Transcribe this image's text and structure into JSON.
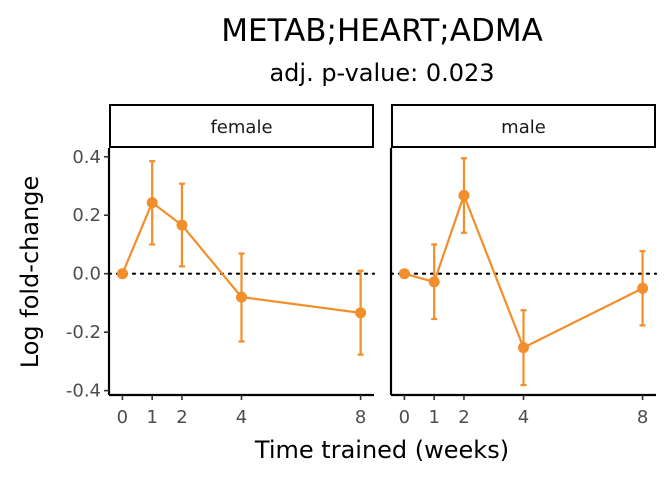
{
  "chart_data": {
    "type": "line",
    "title": "METAB;HEART;ADMA",
    "subtitle": "adj. p-value: 0.023",
    "xlabel": "Time trained (weeks)",
    "ylabel": "Log fold-change",
    "x_ticks": [
      0,
      1,
      2,
      4,
      8
    ],
    "y_ticks": [
      0.4,
      0.2,
      0.0,
      -0.2,
      -0.4
    ],
    "y_tick_labels": [
      "0.4",
      "0.2",
      "0.0",
      "-0.2",
      "-0.4"
    ],
    "ylim": [
      -0.415,
      0.43
    ],
    "xlim": [
      -0.45,
      8.45
    ],
    "reference_line": 0,
    "grid": false,
    "color": "#F28E2B",
    "panels": [
      {
        "label": "female",
        "points": [
          {
            "x": 0,
            "y": 0.0,
            "lo": null,
            "hi": null
          },
          {
            "x": 1,
            "y": 0.243,
            "lo": 0.1,
            "hi": 0.385
          },
          {
            "x": 2,
            "y": 0.166,
            "lo": 0.025,
            "hi": 0.308
          },
          {
            "x": 4,
            "y": -0.08,
            "lo": -0.232,
            "hi": 0.069
          },
          {
            "x": 8,
            "y": -0.134,
            "lo": -0.277,
            "hi": 0.01
          }
        ]
      },
      {
        "label": "male",
        "points": [
          {
            "x": 0,
            "y": 0.0,
            "lo": null,
            "hi": null
          },
          {
            "x": 1,
            "y": -0.028,
            "lo": -0.155,
            "hi": 0.1
          },
          {
            "x": 2,
            "y": 0.268,
            "lo": 0.14,
            "hi": 0.395
          },
          {
            "x": 4,
            "y": -0.253,
            "lo": -0.381,
            "hi": -0.125
          },
          {
            "x": 8,
            "y": -0.05,
            "lo": -0.177,
            "hi": 0.077
          }
        ]
      }
    ]
  }
}
